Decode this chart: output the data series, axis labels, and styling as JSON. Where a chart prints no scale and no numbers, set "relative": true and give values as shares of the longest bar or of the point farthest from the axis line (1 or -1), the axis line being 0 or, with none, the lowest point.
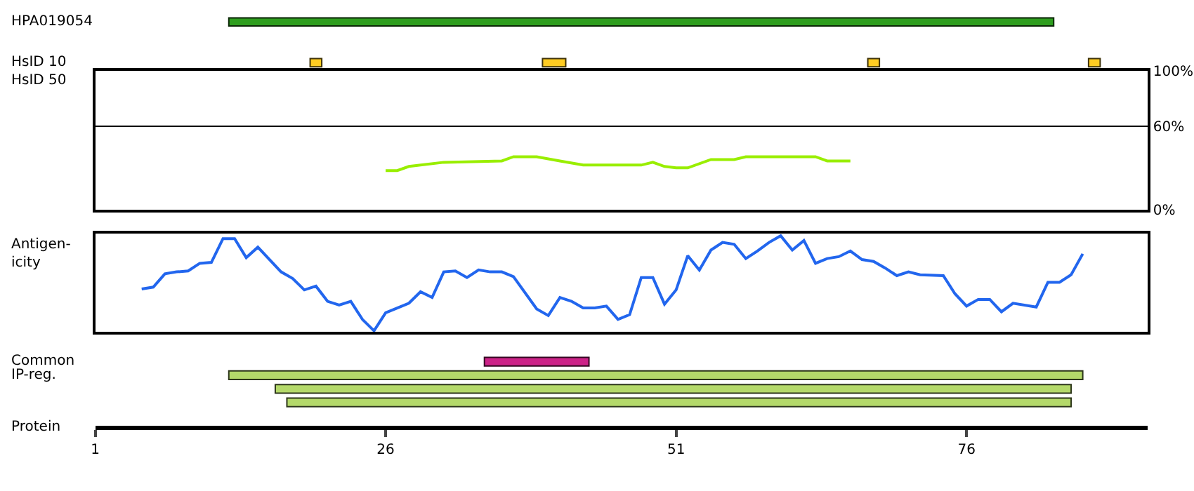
{
  "chart_data": [
    {
      "type": "bar",
      "orientation": "horizontal",
      "categories": [
        "HPA019054",
        "HsID 10"
      ],
      "xlim": [
        1,
        91.6
      ],
      "tick_labels": "y",
      "series": [
        {
          "color": "#2e9e1e",
          "base": [
            12.5,
            null
          ],
          "values": [
            71,
            null
          ]
        },
        {
          "color": "#ffcc22",
          "base": [
            null,
            19.5
          ],
          "values": [
            null,
            1
          ]
        },
        {
          "color": "#ffcc22",
          "base": [
            null,
            39.5
          ],
          "values": [
            null,
            2
          ]
        },
        {
          "color": "#ffcc22",
          "base": [
            null,
            67.5
          ],
          "values": [
            null,
            1
          ]
        },
        {
          "color": "#ffcc22",
          "base": [
            null,
            86.5
          ],
          "values": [
            null,
            1
          ]
        }
      ]
    },
    {
      "type": "line",
      "ylabel": "HsID 50",
      "color": "#99ee00",
      "xlim": [
        1,
        91.6
      ],
      "ylim": [
        0,
        100
      ],
      "yticks": [
        {
          "value": 0,
          "label": "0%"
        },
        {
          "value": 60,
          "label": "60%"
        },
        {
          "value": 100,
          "label": "100%"
        }
      ],
      "grid": "y",
      "tick_labels": "y",
      "x": [
        26,
        27,
        28,
        31,
        36,
        37,
        39,
        41,
        43,
        48,
        49,
        50,
        51,
        52,
        54,
        56,
        57,
        63,
        64,
        66
      ],
      "values": [
        28,
        28,
        31,
        34,
        35,
        38,
        38,
        35,
        32,
        32,
        34,
        31,
        30,
        30,
        36,
        36,
        38,
        38,
        35,
        35
      ]
    },
    {
      "type": "line",
      "ylabel": "Antigen-\nicity",
      "relative": true,
      "color": "#2266ee",
      "xlim": [
        1,
        91.6
      ],
      "tick_labels": false,
      "x": [
        5,
        6,
        7,
        8,
        9,
        10,
        11,
        12,
        13,
        14,
        15,
        17,
        18,
        19,
        20,
        21,
        22,
        23,
        24,
        25,
        26,
        27,
        28,
        29,
        30,
        31,
        32,
        33,
        34,
        35,
        36,
        37,
        39,
        40,
        41,
        42,
        43,
        44,
        45,
        46,
        47,
        48,
        49,
        50,
        51,
        52,
        53,
        54,
        55,
        56,
        57,
        58,
        59,
        60,
        61,
        62,
        63,
        64,
        65,
        66,
        67,
        68,
        69,
        70,
        71,
        72,
        74,
        75,
        76,
        77,
        78,
        79,
        80,
        82,
        83,
        84,
        85,
        86
      ],
      "values": [
        0.44,
        0.46,
        0.6,
        0.62,
        0.63,
        0.71,
        0.72,
        0.97,
        0.97,
        0.77,
        0.88,
        0.62,
        0.55,
        0.43,
        0.47,
        0.31,
        0.27,
        0.31,
        0.12,
        0,
        0.19,
        0.24,
        0.29,
        0.41,
        0.35,
        0.62,
        0.63,
        0.56,
        0.64,
        0.62,
        0.62,
        0.57,
        0.23,
        0.16,
        0.35,
        0.31,
        0.24,
        0.24,
        0.26,
        0.12,
        0.17,
        0.56,
        0.56,
        0.28,
        0.43,
        0.79,
        0.64,
        0.85,
        0.93,
        0.91,
        0.76,
        0.84,
        0.93,
        1,
        0.85,
        0.95,
        0.71,
        0.76,
        0.78,
        0.84,
        0.75,
        0.73,
        0.66,
        0.58,
        0.62,
        0.59,
        0.58,
        0.39,
        0.26,
        0.33,
        0.33,
        0.2,
        0.29,
        0.25,
        0.51,
        0.51,
        0.59,
        0.81
      ]
    },
    {
      "type": "bar",
      "orientation": "horizontal",
      "categories": [
        "Common",
        "IP-reg.",
        null,
        null
      ],
      "xlim": [
        1,
        91.6
      ],
      "xticks": [
        1,
        26,
        51,
        76
      ],
      "xlabel": "Protein",
      "series": [
        {
          "color": "#cc2288",
          "base": [
            34.5,
            null,
            null,
            null
          ],
          "values": [
            9,
            null,
            null,
            null
          ]
        },
        {
          "color": "#b4d96a",
          "base": [
            null,
            12.5,
            16.5,
            17.5
          ],
          "values": [
            null,
            73.5,
            68.5,
            67.5
          ]
        }
      ]
    }
  ]
}
